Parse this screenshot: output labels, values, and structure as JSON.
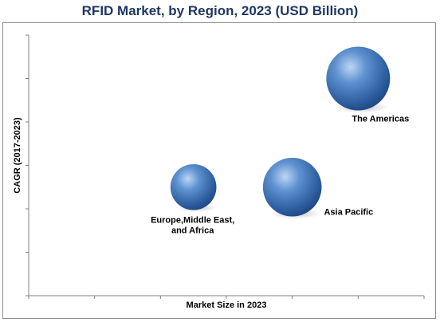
{
  "chart_data": {
    "type": "bubble",
    "title": "RFID Market, by Region, 2023 (USD Billion)",
    "xlabel": "Market Size in 2023",
    "ylabel": "CAGR (2017-2023)",
    "xlim": [
      0,
      6
    ],
    "ylim": [
      0,
      6
    ],
    "grid": false,
    "show_tick_labels": false,
    "bubble_color": "#3d6fb0",
    "series": [
      {
        "name": "The Americas",
        "x": 5.0,
        "y": 5.0,
        "size": 1.0
      },
      {
        "name": "Asia Pacific",
        "x": 4.0,
        "y": 2.5,
        "size": 0.92
      },
      {
        "name": "Europe,Middle East, and Africa",
        "x": 2.5,
        "y": 2.5,
        "size": 0.72
      }
    ]
  }
}
